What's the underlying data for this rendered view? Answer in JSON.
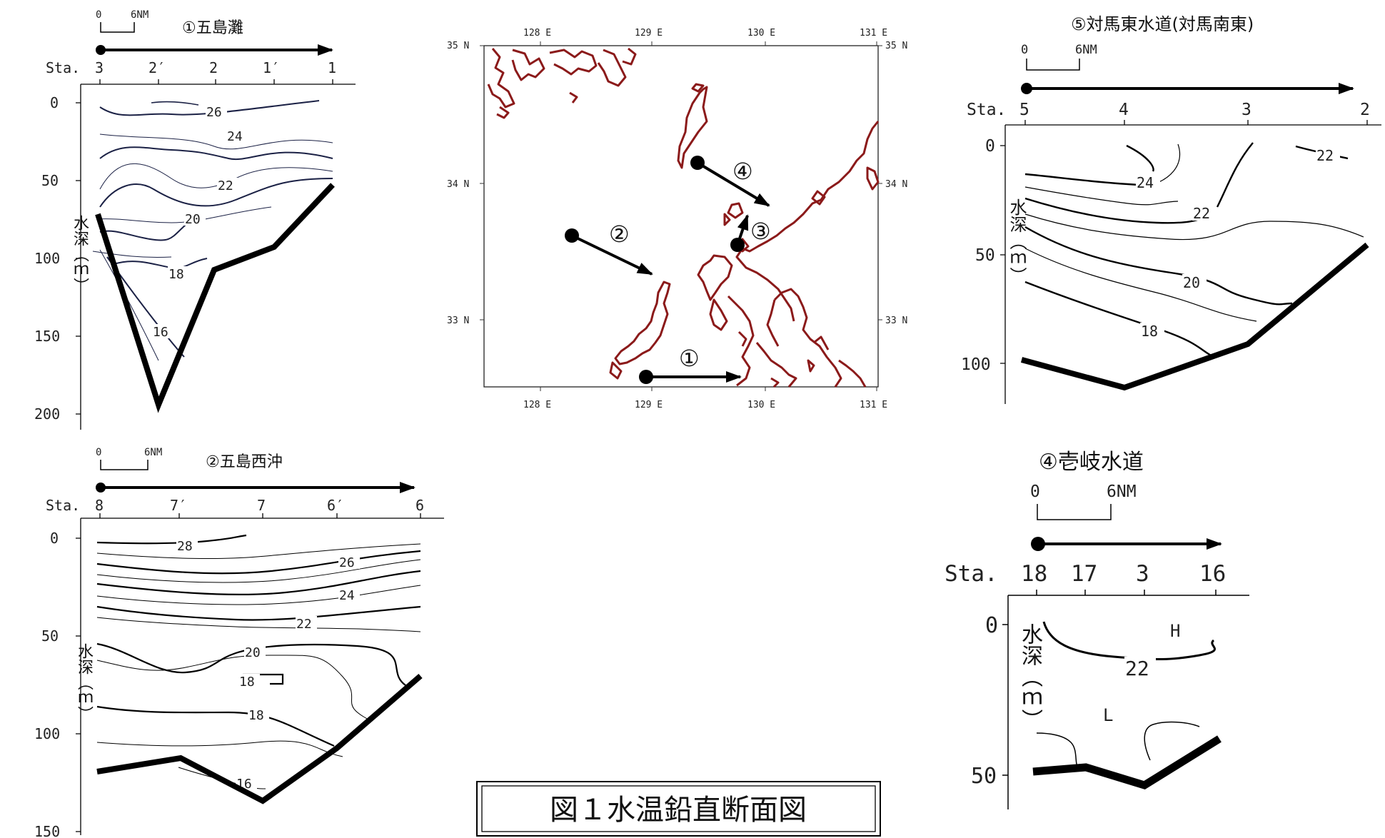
{
  "caption": "図１水温鉛直断面図",
  "depth_label": "水深（ｍ）",
  "sta_prefix": "Sta.",
  "scale": {
    "zero": "0",
    "dist": "6NM"
  },
  "map": {
    "lon_ticks": [
      "128 E",
      "129 E",
      "130 E",
      "131 E"
    ],
    "lat_ticks": [
      "35 N",
      "34 N",
      "33 N"
    ],
    "route_labels": [
      "①",
      "②",
      "③",
      "④"
    ]
  },
  "panels": [
    {
      "title": "①五島灘",
      "stations": [
        "3",
        "2′",
        "2",
        "1′",
        "1"
      ],
      "depth_ticks": [
        "0",
        "50",
        "100",
        "150",
        "200"
      ],
      "isotherm_labels": [
        "26",
        "24",
        "22",
        "20",
        "18",
        "16"
      ],
      "extra_labels": []
    },
    {
      "title": "②五島西沖",
      "stations": [
        "8",
        "7′",
        "7",
        "6′",
        "6"
      ],
      "depth_ticks": [
        "0",
        "50",
        "100",
        "150"
      ],
      "isotherm_labels": [
        "28",
        "26",
        "24",
        "22",
        "20",
        "18",
        "18",
        "16"
      ],
      "extra_labels": []
    },
    {
      "title": "⑤対馬東水道(対馬南東)",
      "stations": [
        "5",
        "4",
        "3",
        "2"
      ],
      "depth_ticks": [
        "0",
        "50",
        "100"
      ],
      "isotherm_labels": [
        "24",
        "22",
        "22",
        "20",
        "18"
      ],
      "extra_labels": []
    },
    {
      "title": "④壱岐水道",
      "stations": [
        "18",
        "17",
        "3",
        "16"
      ],
      "depth_ticks": [
        "0",
        "50"
      ],
      "isotherm_labels": [
        "22"
      ],
      "extra_labels": [
        "H",
        "L"
      ]
    }
  ]
}
